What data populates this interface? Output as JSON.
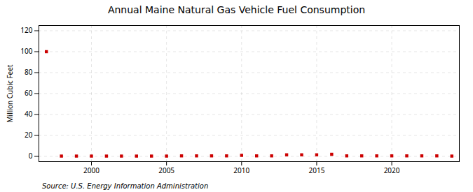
{
  "chart_data": {
    "type": "scatter",
    "title": "Annual Maine Natural Gas Vehicle Fuel Consumption",
    "ylabel": "Million Cubic Feet",
    "annotation": "Source: U.S. Energy Information Administration",
    "x": [
      1997,
      1998,
      1999,
      2000,
      2001,
      2002,
      2003,
      2004,
      2005,
      2006,
      2007,
      2008,
      2009,
      2010,
      2011,
      2012,
      2013,
      2014,
      2015,
      2016,
      2017,
      2018,
      2019,
      2020,
      2021,
      2022,
      2023,
      2024
    ],
    "values": [
      100,
      0.3,
      0.3,
      0.3,
      0.3,
      0.3,
      0.3,
      0.3,
      0.3,
      0.5,
      0.5,
      0.5,
      0.5,
      1.0,
      0.5,
      0.5,
      1.5,
      1.5,
      1.5,
      2.0,
      0.5,
      0.5,
      0.5,
      0.5,
      0.5,
      0.5,
      0.5,
      0.3
    ],
    "color": "#cc0000",
    "marker": "square",
    "xlim": [
      1996.5,
      2024.5
    ],
    "ylim": [
      -5,
      125
    ],
    "xticks": [
      2000,
      2005,
      2010,
      2015,
      2020
    ],
    "yticks": [
      0,
      20,
      40,
      60,
      80,
      100,
      120
    ],
    "grid": true
  }
}
